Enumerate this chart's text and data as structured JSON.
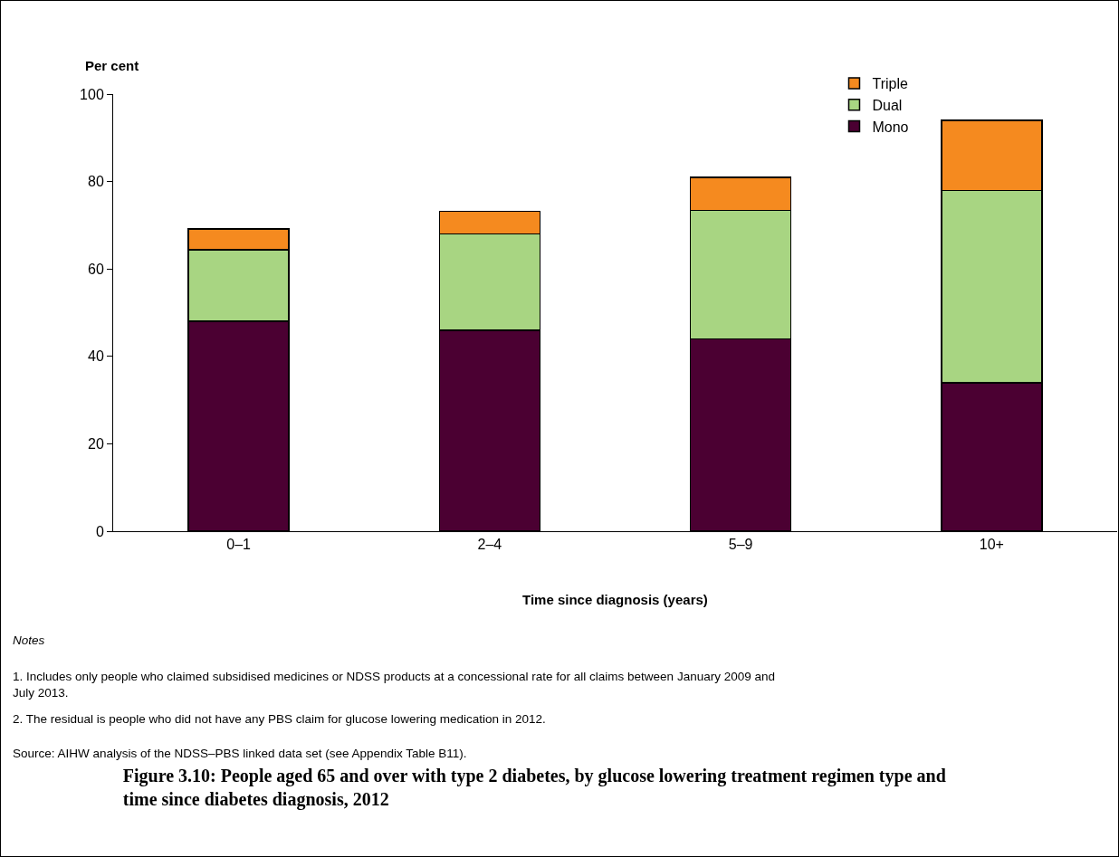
{
  "chart_data": {
    "type": "bar",
    "title": "Figure 3.10: People aged 65 and over with type 2 diabetes, by glucose lowering treatment regimen type and time since diabetes diagnosis, 2012",
    "xlabel": "Time since diagnosis (years)",
    "ylabel": "Per cent",
    "categories": [
      "0–1",
      "2–4",
      "5–9",
      "10+"
    ],
    "stacked": true,
    "series": [
      {
        "name": "Mono",
        "color": "#4b0032",
        "values": [
          48,
          46,
          44,
          34
        ]
      },
      {
        "name": "Dual",
        "color": "#a8d582",
        "values": [
          16.4,
          22,
          29.4,
          44
        ]
      },
      {
        "name": "Triple",
        "color": "#f58a1f",
        "values": [
          4.8,
          5.2,
          7.6,
          16
        ]
      }
    ],
    "ylim": [
      0,
      100
    ],
    "yticks": [
      0,
      20,
      40,
      60,
      80,
      100
    ],
    "grid": false,
    "legend": "top right",
    "annotations": [
      "Notes",
      "1. Includes only people who claimed subsidised medicines or NDSS products at a concessional rate for all claims between January 2009 and July 2013.",
      "2. The residual is people who did not have any PBS claim for glucose lowering medication in 2012.",
      "Source: AIHW analysis of the NDSS–PBS linked data set (see Appendix Table B11)."
    ]
  }
}
